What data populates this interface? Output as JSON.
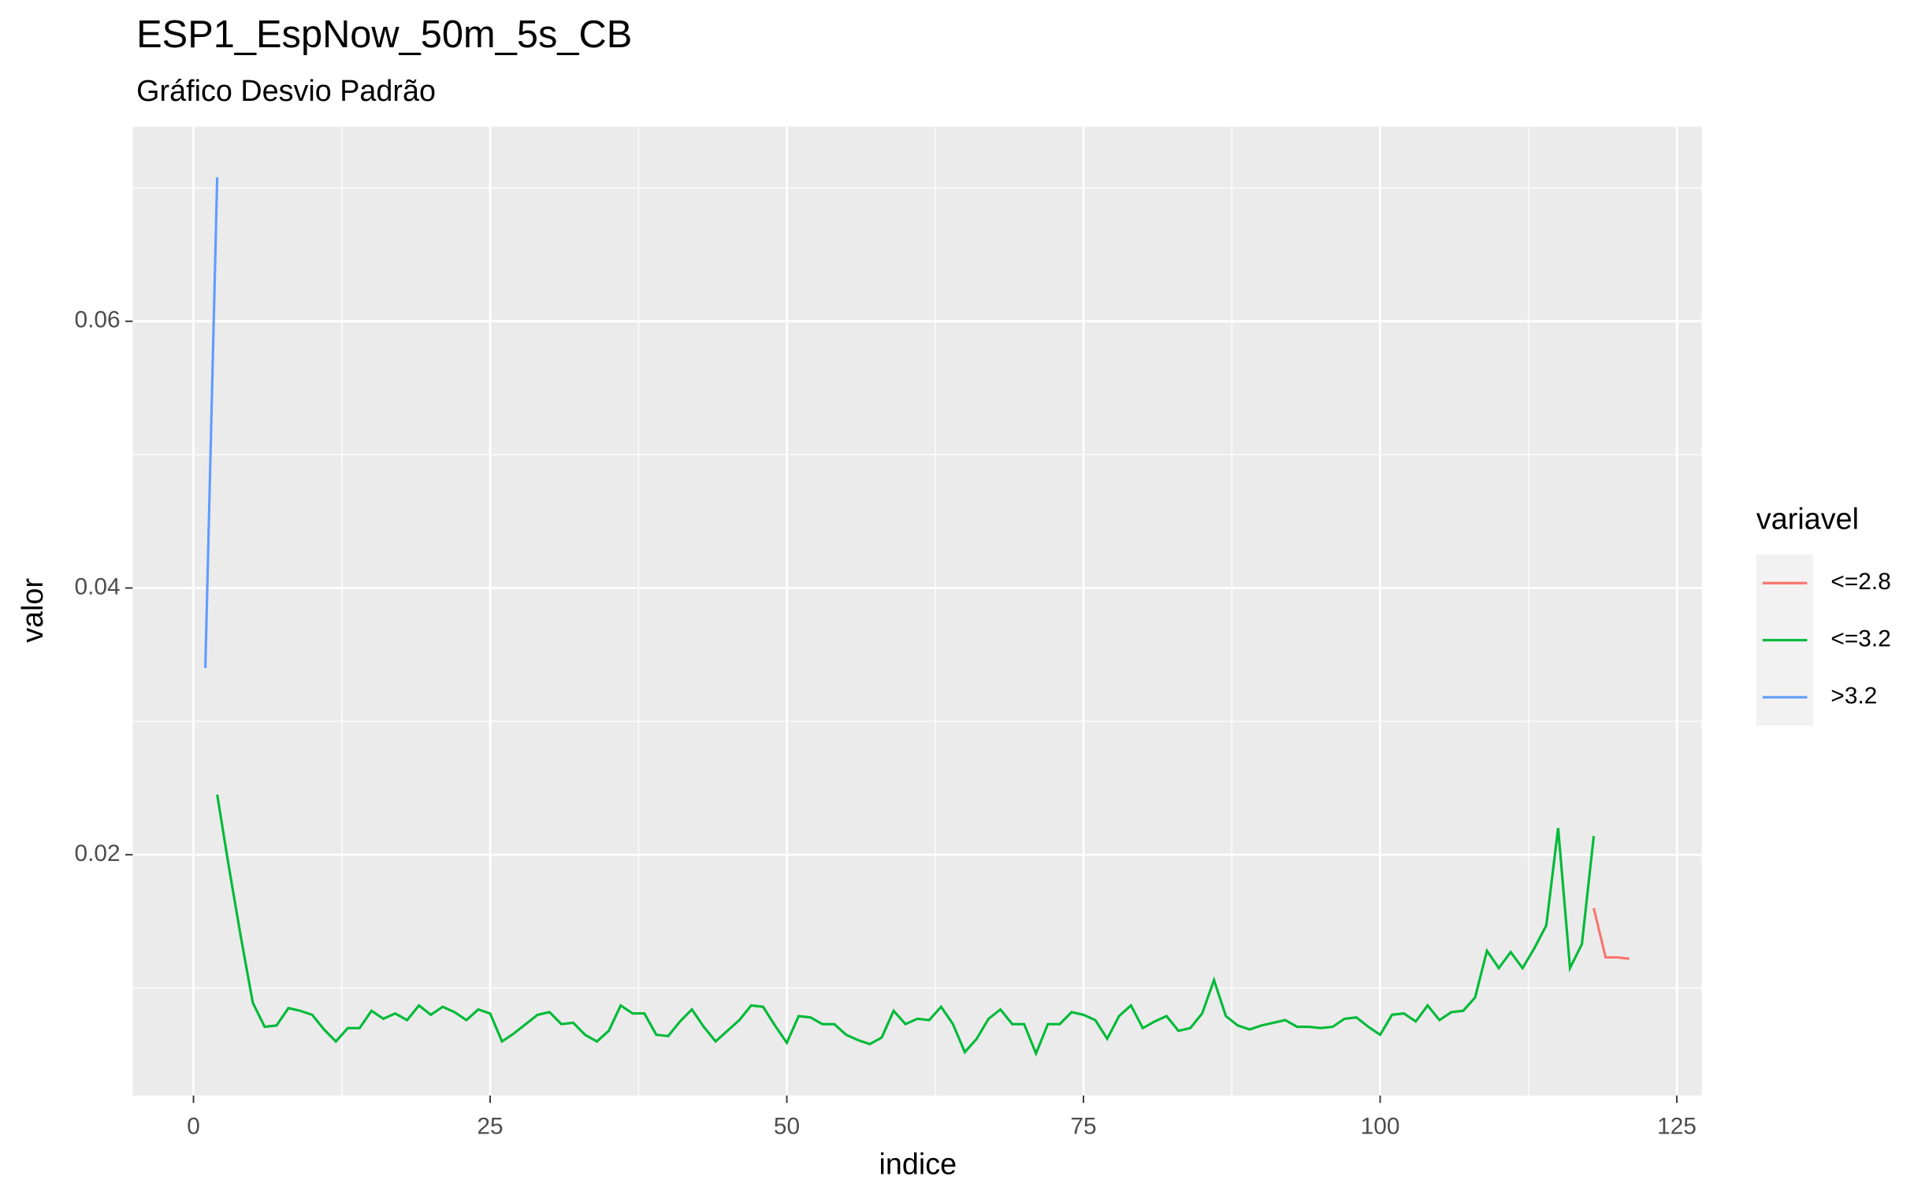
{
  "chart_data": {
    "type": "line",
    "title": "ESP1_EspNow_50m_5s_CB",
    "subtitle": "Gráfico Desvio Padrão",
    "x_label": "indice",
    "y_label": "valor",
    "legend_title": "variavel",
    "legend": "right",
    "grid": true,
    "xlim": [
      -5.12,
      127.1
    ],
    "ylim": [
      0.00195,
      0.0746
    ],
    "xticks": [
      0,
      25,
      50,
      75,
      100,
      125
    ],
    "yticks": [
      0.02,
      0.04,
      0.06
    ],
    "minor_xticks": [
      12.5,
      37.5,
      62.5,
      87.5,
      112.5
    ],
    "minor_yticks": [
      0.01,
      0.03,
      0.05,
      0.07
    ],
    "series": [
      {
        "name": "<=2.8",
        "color": "#f8766d",
        "x": [
          118,
          119,
          120,
          121
        ],
        "values": [
          0.016,
          0.0123,
          0.0123,
          0.0122
        ]
      },
      {
        "name": "<=3.2",
        "color": "#00ba38",
        "x": [
          2,
          3,
          4,
          5,
          6,
          7,
          8,
          9,
          10,
          11,
          12,
          13,
          14,
          15,
          16,
          17,
          18,
          19,
          20,
          21,
          22,
          23,
          24,
          25,
          26,
          27,
          28,
          29,
          30,
          31,
          32,
          33,
          34,
          35,
          36,
          37,
          38,
          39,
          40,
          41,
          42,
          43,
          44,
          45,
          46,
          47,
          48,
          49,
          50,
          51,
          52,
          53,
          54,
          55,
          56,
          57,
          58,
          59,
          60,
          61,
          62,
          63,
          64,
          65,
          66,
          67,
          68,
          69,
          70,
          71,
          72,
          73,
          74,
          75,
          76,
          77,
          78,
          79,
          80,
          81,
          82,
          83,
          84,
          85,
          86,
          87,
          88,
          89,
          90,
          91,
          92,
          93,
          94,
          95,
          96,
          97,
          98,
          99,
          100,
          101,
          102,
          103,
          104,
          105,
          106,
          107,
          108,
          109,
          110,
          111,
          112,
          113,
          114,
          115,
          116,
          117,
          118
        ],
        "values": [
          0.0245,
          0.019,
          0.0138,
          0.0089,
          0.0071,
          0.0072,
          0.0085,
          0.0083,
          0.008,
          0.0069,
          0.006,
          0.007,
          0.007,
          0.0083,
          0.0077,
          0.0081,
          0.0076,
          0.0087,
          0.008,
          0.0086,
          0.0082,
          0.0076,
          0.0084,
          0.0081,
          0.006,
          0.0066,
          0.0073,
          0.008,
          0.0082,
          0.0073,
          0.0074,
          0.0065,
          0.006,
          0.0068,
          0.0087,
          0.0081,
          0.0081,
          0.0065,
          0.0064,
          0.0075,
          0.0084,
          0.0071,
          0.006,
          0.0068,
          0.0076,
          0.0087,
          0.0086,
          0.0072,
          0.0059,
          0.0079,
          0.0078,
          0.0073,
          0.0073,
          0.0065,
          0.0061,
          0.0058,
          0.0063,
          0.0083,
          0.0073,
          0.0077,
          0.0076,
          0.0086,
          0.0073,
          0.0052,
          0.0062,
          0.0077,
          0.0084,
          0.0073,
          0.0073,
          0.0051,
          0.0073,
          0.0073,
          0.0082,
          0.008,
          0.0076,
          0.0062,
          0.0079,
          0.0087,
          0.007,
          0.0075,
          0.0079,
          0.0068,
          0.007,
          0.0081,
          0.0106,
          0.0079,
          0.0072,
          0.0069,
          0.0072,
          0.0074,
          0.0076,
          0.0071,
          0.0071,
          0.007,
          0.0071,
          0.0077,
          0.0078,
          0.0071,
          0.0065,
          0.008,
          0.0081,
          0.0075,
          0.0087,
          0.0076,
          0.0082,
          0.0083,
          0.0093,
          0.0128,
          0.0115,
          0.0127,
          0.0115,
          0.013,
          0.0147,
          0.022,
          0.0115,
          0.0133,
          0.0214
        ]
      },
      {
        "name": ">3.2",
        "color": "#619cff",
        "x": [
          1,
          2
        ],
        "values": [
          0.034,
          0.0708
        ]
      }
    ]
  }
}
